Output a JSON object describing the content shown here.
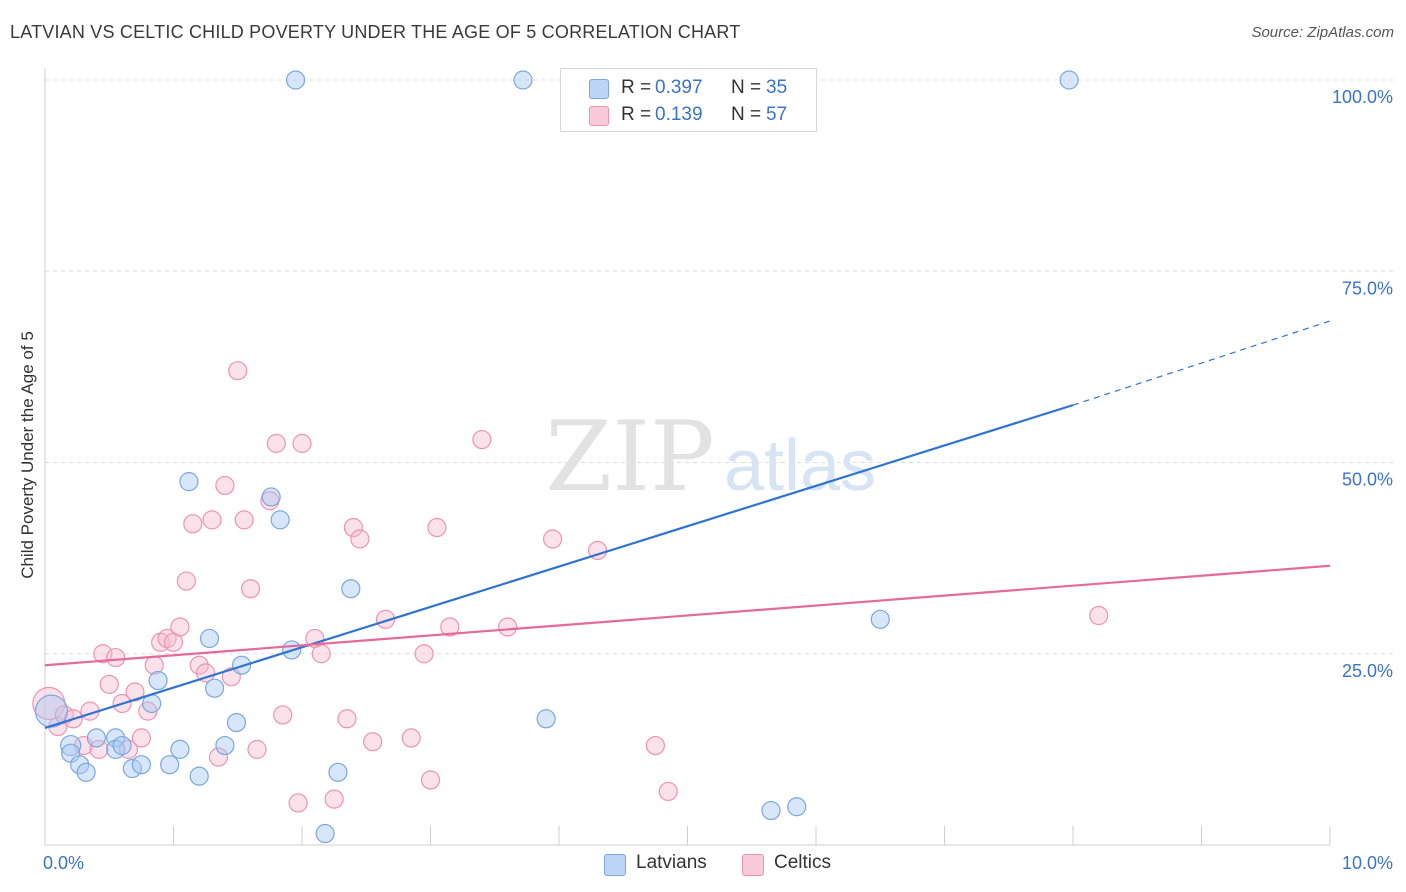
{
  "header": {
    "title": "LATVIAN VS CELTIC CHILD POVERTY UNDER THE AGE OF 5 CORRELATION CHART",
    "source": "Source: ZipAtlas.com"
  },
  "watermark": {
    "zip": "ZIP",
    "atlas": "atlas"
  },
  "legend": {
    "rows": [
      {
        "r_label": "R =",
        "r_value": "0.397",
        "n_label": "N =",
        "n_value": "35"
      },
      {
        "r_label": "R =",
        "r_value": "0.139",
        "n_label": "N =",
        "n_value": "57"
      }
    ]
  },
  "bottom_legend": {
    "latvians": "Latvians",
    "celtics": "Celtics"
  },
  "colors": {
    "latvians_fill": "#a9c8f2",
    "latvians_stroke": "#7aa7e0",
    "latvians_line": "#2f74d0",
    "celtics_fill": "#f7bcd0",
    "celtics_stroke": "#ee93b3",
    "celtics_line": "#e46a98",
    "tick_label": "#3a73c9",
    "grid": "#dddddd"
  },
  "chart_data": {
    "type": "scatter",
    "title": "LATVIAN VS CELTIC CHILD POVERTY UNDER THE AGE OF 5 CORRELATION CHART",
    "xlabel": "",
    "ylabel": "Child Poverty Under the Age of 5",
    "xlim": [
      0,
      10
    ],
    "ylim": [
      0,
      100
    ],
    "x_tick_labels": [
      "0.0%",
      "10.0%"
    ],
    "y_ticks": [
      25,
      50,
      75,
      100
    ],
    "y_tick_labels": [
      "25.0%",
      "50.0%",
      "75.0%",
      "100.0%"
    ],
    "grid": true,
    "legend_position": "top-center",
    "series": [
      {
        "name": "Latvians",
        "r": 0.397,
        "n": 35,
        "trend": {
          "x0": 0,
          "y0": 15.3,
          "x1": 8.0,
          "y1": 57.5,
          "dash_to_x": 10.0,
          "dash_to_y": 68.5
        },
        "points": [
          [
            0.05,
            17.5,
            16
          ],
          [
            0.2,
            13.0,
            10
          ],
          [
            0.2,
            12.0,
            9
          ],
          [
            0.27,
            10.5,
            9
          ],
          [
            0.32,
            9.5,
            9
          ],
          [
            0.4,
            14.0,
            9
          ],
          [
            0.55,
            14.0,
            9
          ],
          [
            0.55,
            12.5,
            9
          ],
          [
            0.6,
            13.0,
            9
          ],
          [
            0.68,
            10.0,
            9
          ],
          [
            0.75,
            10.5,
            9
          ],
          [
            0.83,
            18.5,
            9
          ],
          [
            0.88,
            21.5,
            9
          ],
          [
            0.97,
            10.5,
            9
          ],
          [
            1.05,
            12.5,
            9
          ],
          [
            1.12,
            47.5,
            9
          ],
          [
            1.2,
            9.0,
            9
          ],
          [
            1.28,
            27.0,
            9
          ],
          [
            1.32,
            20.5,
            9
          ],
          [
            1.4,
            13.0,
            9
          ],
          [
            1.49,
            16.0,
            9
          ],
          [
            1.53,
            23.5,
            9
          ],
          [
            1.76,
            45.5,
            9
          ],
          [
            1.83,
            42.5,
            9
          ],
          [
            1.92,
            25.5,
            9
          ],
          [
            1.95,
            100.0,
            9
          ],
          [
            2.18,
            1.5,
            9
          ],
          [
            2.28,
            9.5,
            9
          ],
          [
            2.38,
            33.5,
            9
          ],
          [
            3.9,
            16.5,
            9
          ],
          [
            3.72,
            100.0,
            9
          ],
          [
            5.65,
            4.5,
            9
          ],
          [
            5.85,
            5.0,
            9
          ],
          [
            6.5,
            29.5,
            9
          ],
          [
            7.97,
            100.0,
            9
          ]
        ]
      },
      {
        "name": "Celtics",
        "r": 0.139,
        "n": 57,
        "trend": {
          "x0": 0,
          "y0": 23.5,
          "x1": 10.0,
          "y1": 36.5
        },
        "points": [
          [
            0.03,
            18.5,
            16
          ],
          [
            0.1,
            15.5,
            9
          ],
          [
            0.15,
            17.0,
            9
          ],
          [
            0.22,
            16.5,
            9
          ],
          [
            0.3,
            13.0,
            9
          ],
          [
            0.35,
            17.5,
            9
          ],
          [
            0.42,
            12.5,
            9
          ],
          [
            0.45,
            25.0,
            9
          ],
          [
            0.5,
            21.0,
            9
          ],
          [
            0.55,
            24.5,
            9
          ],
          [
            0.6,
            18.5,
            9
          ],
          [
            0.65,
            12.5,
            9
          ],
          [
            0.7,
            20.0,
            9
          ],
          [
            0.75,
            14.0,
            9
          ],
          [
            0.8,
            17.5,
            9
          ],
          [
            0.85,
            23.5,
            9
          ],
          [
            0.9,
            26.5,
            9
          ],
          [
            0.95,
            27.0,
            9
          ],
          [
            1.0,
            26.5,
            9
          ],
          [
            1.05,
            28.5,
            9
          ],
          [
            1.1,
            34.5,
            9
          ],
          [
            1.15,
            42.0,
            9
          ],
          [
            1.2,
            23.5,
            9
          ],
          [
            1.25,
            22.5,
            9
          ],
          [
            1.3,
            42.5,
            9
          ],
          [
            1.35,
            11.5,
            9
          ],
          [
            1.4,
            47.0,
            9
          ],
          [
            1.45,
            22.0,
            9
          ],
          [
            1.5,
            62.0,
            9
          ],
          [
            1.55,
            42.5,
            9
          ],
          [
            1.6,
            33.5,
            9
          ],
          [
            1.65,
            12.5,
            9
          ],
          [
            1.75,
            45.0,
            9
          ],
          [
            1.8,
            52.5,
            9
          ],
          [
            1.85,
            17.0,
            9
          ],
          [
            1.97,
            5.5,
            9
          ],
          [
            2.0,
            52.5,
            9
          ],
          [
            2.1,
            27.0,
            9
          ],
          [
            2.15,
            25.0,
            9
          ],
          [
            2.25,
            6.0,
            9
          ],
          [
            2.35,
            16.5,
            9
          ],
          [
            2.4,
            41.5,
            9
          ],
          [
            2.45,
            40.0,
            9
          ],
          [
            2.55,
            13.5,
            9
          ],
          [
            2.65,
            29.5,
            9
          ],
          [
            2.85,
            14.0,
            9
          ],
          [
            2.95,
            25.0,
            9
          ],
          [
            3.0,
            8.5,
            9
          ],
          [
            3.05,
            41.5,
            9
          ],
          [
            3.15,
            28.5,
            9
          ],
          [
            3.4,
            53.0,
            9
          ],
          [
            3.6,
            28.5,
            9
          ],
          [
            3.95,
            40.0,
            9
          ],
          [
            4.3,
            38.5,
            9
          ],
          [
            4.75,
            13.0,
            9
          ],
          [
            4.85,
            7.0,
            9
          ],
          [
            8.2,
            30.0,
            9
          ]
        ]
      }
    ]
  }
}
